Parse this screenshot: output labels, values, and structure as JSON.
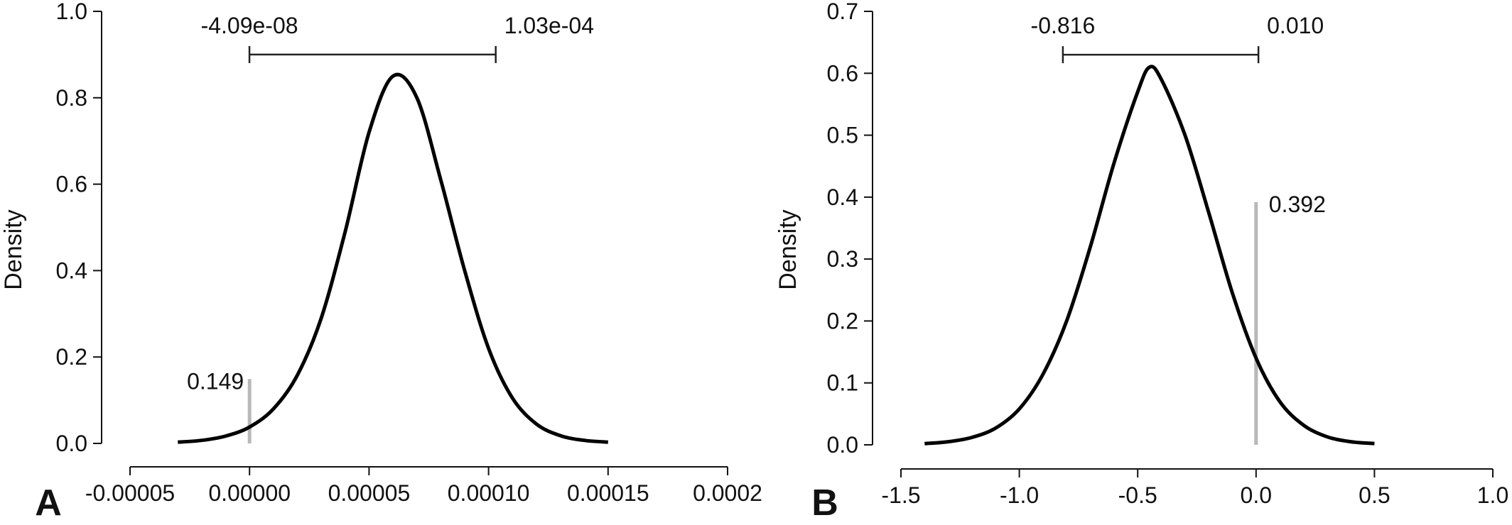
{
  "chart_data": [
    {
      "type": "line",
      "panel_label": "A",
      "ylabel": "Density",
      "xlabel": "",
      "xlim": [
        -5e-05,
        0.0002
      ],
      "ylim": [
        0,
        1.0
      ],
      "x_ticks": [
        -5e-05,
        0.0,
        5e-05,
        0.0001,
        0.00015,
        0.0002
      ],
      "x_tick_labels": [
        "-0.00005",
        "0.00000",
        "0.00005",
        "0.00010",
        "0.00015",
        "0.0002"
      ],
      "y_ticks": [
        0.0,
        0.2,
        0.4,
        0.6,
        0.8,
        1.0
      ],
      "y_tick_labels": [
        "0.0",
        "0.2",
        "0.4",
        "0.6",
        "0.8",
        "1.0"
      ],
      "series": [
        {
          "x": [
            -3e-05,
            -2e-05,
            -1e-05,
            0.0,
            1e-05,
            2e-05,
            3e-05,
            4e-05,
            5e-05,
            6e-05,
            7e-05,
            8e-05,
            9e-05,
            0.0001,
            0.00011,
            0.00012,
            0.00013,
            0.00014,
            0.00015
          ],
          "values": [
            0.003,
            0.007,
            0.017,
            0.038,
            0.08,
            0.158,
            0.29,
            0.49,
            0.72,
            0.85,
            0.8,
            0.61,
            0.4,
            0.22,
            0.105,
            0.045,
            0.018,
            0.007,
            0.003
          ]
        }
      ],
      "interval": {
        "lower": -4.09e-08,
        "upper": 0.000103,
        "lower_label": "-4.09e-08",
        "upper_label": "1.03e-04",
        "y": 0.9
      },
      "point": {
        "x": 0.0,
        "height": 0.149,
        "label": "0.149"
      }
    },
    {
      "type": "line",
      "panel_label": "B",
      "ylabel": "Density",
      "xlabel": "",
      "xlim": [
        -1.5,
        1.0
      ],
      "ylim": [
        0,
        0.7
      ],
      "x_ticks": [
        -1.5,
        -1.0,
        -0.5,
        0.0,
        0.5,
        1.0
      ],
      "x_tick_labels": [
        "-1.5",
        "-1.0",
        "-0.5",
        "0.0",
        "0.5",
        "1.0"
      ],
      "y_ticks": [
        0.0,
        0.1,
        0.2,
        0.3,
        0.4,
        0.5,
        0.6,
        0.7
      ],
      "y_tick_labels": [
        "0.0",
        "0.1",
        "0.2",
        "0.3",
        "0.4",
        "0.5",
        "0.6",
        "0.7"
      ],
      "series": [
        {
          "x": [
            -1.4,
            -1.3,
            -1.2,
            -1.1,
            -1.0,
            -0.9,
            -0.8,
            -0.7,
            -0.6,
            -0.5,
            -0.45,
            -0.4,
            -0.3,
            -0.2,
            -0.1,
            0.0,
            0.1,
            0.2,
            0.3,
            0.4,
            0.5
          ],
          "values": [
            0.002,
            0.005,
            0.012,
            0.027,
            0.058,
            0.114,
            0.2,
            0.32,
            0.455,
            0.57,
            0.61,
            0.59,
            0.5,
            0.375,
            0.245,
            0.14,
            0.07,
            0.032,
            0.013,
            0.005,
            0.002
          ]
        }
      ],
      "interval": {
        "lower": -0.816,
        "upper": 0.01,
        "lower_label": "-0.816",
        "upper_label": "0.010",
        "y": 0.63
      },
      "point": {
        "x": 0.0,
        "height": 0.392,
        "label": "0.392"
      }
    }
  ]
}
